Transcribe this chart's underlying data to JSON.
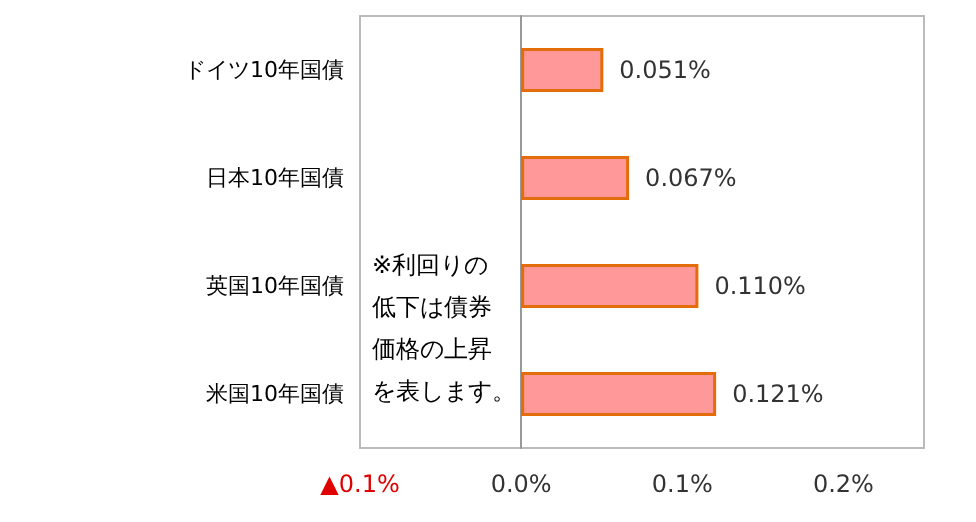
{
  "chart_data": {
    "type": "bar",
    "orientation": "horizontal",
    "categories": [
      "ドイツ10年国債",
      "日本10年国債",
      "英国10年国債",
      "米国10年国債"
    ],
    "values": [
      0.051,
      0.067,
      0.11,
      0.121
    ],
    "color": "#ff9999",
    "value_labels": [
      "0.051%",
      "0.067%",
      "0.110%",
      "0.121%"
    ],
    "xlim": [
      -0.1,
      0.25
    ],
    "xticks": [
      {
        "value": -0.1,
        "label": "▲0.1%"
      },
      {
        "value": 0,
        "label": "0.0%"
      },
      {
        "value": 0.1,
        "label": "0.1%"
      },
      {
        "value": 0.2,
        "label": "0.2%"
      }
    ],
    "annotations": [
      "※利回りの低下は債券価格の上昇を表します。"
    ]
  }
}
